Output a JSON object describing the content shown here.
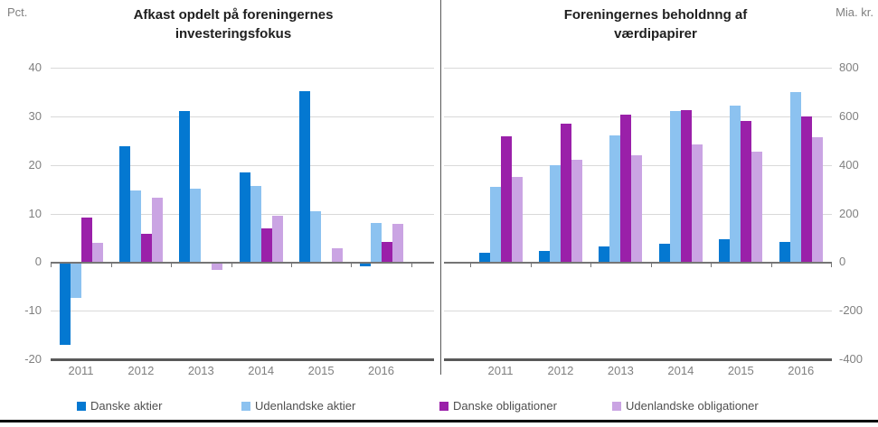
{
  "colors": {
    "gridline": "#d9d9d9",
    "zero_line": "#757575",
    "axis_line": "#595959",
    "axis_text": "#808080",
    "title_text": "#1f1f1f",
    "legend_text": "#4f4f4f",
    "divider": "#595959",
    "bottom_border": "#000000"
  },
  "legend": {
    "items": [
      {
        "label": "Danske aktier",
        "color": "#0478d1"
      },
      {
        "label": "Udenlandske aktier",
        "color": "#8cc2f0"
      },
      {
        "label": "Danske obligationer",
        "color": "#9a20a9"
      },
      {
        "label": "Udenlandske obligationer",
        "color": "#caa4e3"
      }
    ]
  },
  "chart_data": [
    {
      "type": "bar",
      "title_lines": [
        "Afkast opdelt på foreningernes",
        "investeringsfokus"
      ],
      "title": "Afkast opdelt på foreningernes investeringsfokus",
      "unit": "Pct.",
      "axis_side": "left",
      "ylim": [
        -20,
        40
      ],
      "yticks": [
        40,
        30,
        20,
        10,
        0,
        -10,
        -20
      ],
      "grid": true,
      "legend_position": "bottom",
      "categories": [
        "2011",
        "2012",
        "2013",
        "2014",
        "2015",
        "2016"
      ],
      "series": [
        {
          "name": "Danske aktier",
          "values": [
            -17.1,
            23.9,
            31.1,
            18.5,
            35.2,
            -0.8
          ]
        },
        {
          "name": "Udenlandske aktier",
          "values": [
            -7.3,
            14.8,
            15.1,
            15.7,
            10.4,
            8.1
          ]
        },
        {
          "name": "Danske obligationer",
          "values": [
            9.1,
            5.8,
            0,
            6.9,
            -0.4,
            4.2
          ]
        },
        {
          "name": "Udenlandske obligationer",
          "values": [
            3.9,
            13.3,
            -1.6,
            9.6,
            2.9,
            7.9
          ]
        }
      ]
    },
    {
      "type": "bar",
      "title_lines": [
        "Foreningernes beholdnng af",
        "værdipapirer"
      ],
      "title": "Foreningernes beholdnng af værdipapirer",
      "unit": "Mia. kr.",
      "axis_side": "right",
      "ylim": [
        -400,
        800
      ],
      "yticks": [
        800,
        600,
        400,
        200,
        0,
        -200,
        -400
      ],
      "grid": true,
      "legend_position": "bottom",
      "categories": [
        "2011",
        "2012",
        "2013",
        "2014",
        "2015",
        "2016"
      ],
      "series": [
        {
          "name": "Danske aktier",
          "values": [
            40,
            47,
            63,
            75,
            93,
            84
          ]
        },
        {
          "name": "Udenlandske aktier",
          "values": [
            310,
            398,
            520,
            620,
            645,
            700
          ]
        },
        {
          "name": "Danske obligationer",
          "values": [
            518,
            570,
            605,
            625,
            580,
            600
          ]
        },
        {
          "name": "Udenlandske obligationer",
          "values": [
            350,
            420,
            440,
            485,
            455,
            515
          ]
        }
      ]
    }
  ]
}
